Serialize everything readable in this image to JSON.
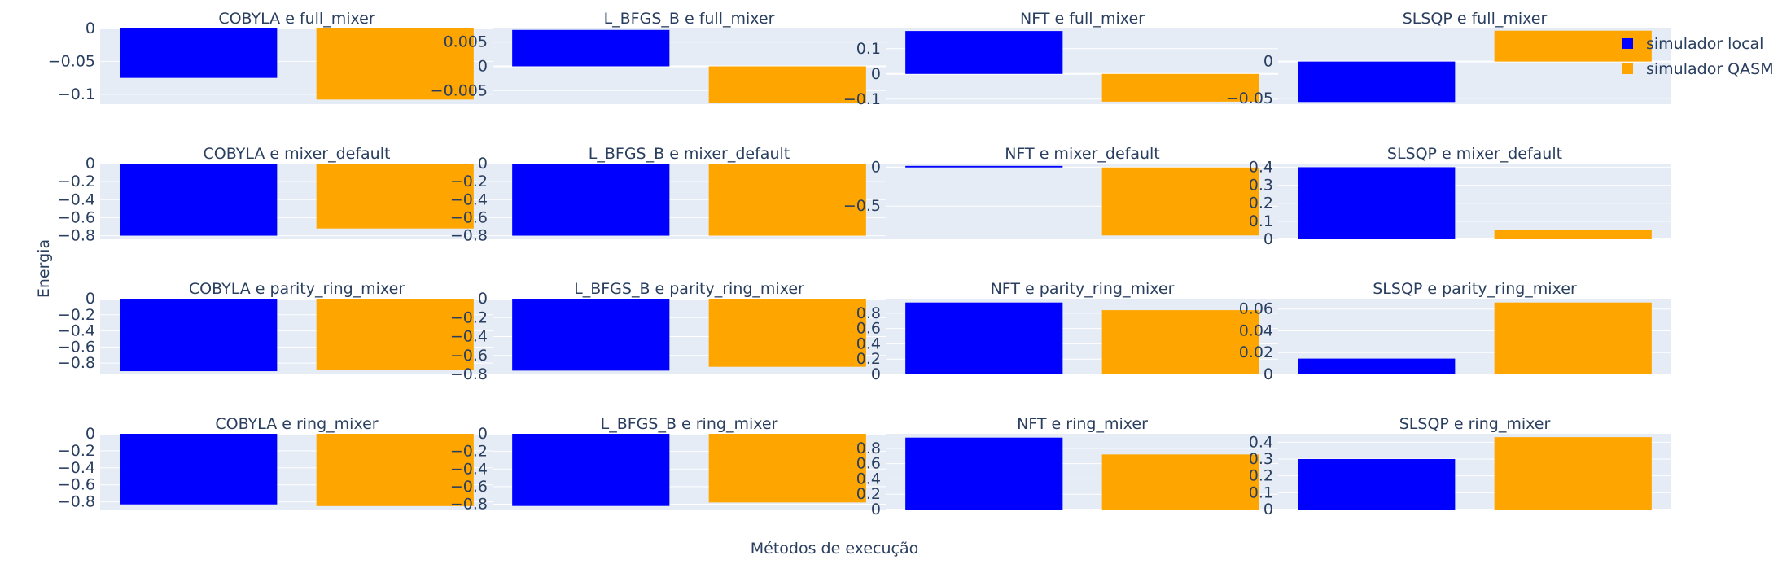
{
  "chart_data": {
    "type": "bar",
    "ylabel": "Energia",
    "xlabel": "Métodos de execução",
    "legend": {
      "placement": "top-right",
      "items": [
        {
          "name": "simulador local",
          "color": "#0000ff"
        },
        {
          "name": "simulador QASM",
          "color": "#ffa500"
        }
      ]
    },
    "grid": true,
    "subplots": [
      {
        "title": "COBYLA e full_mixer",
        "values": [
          -0.075,
          -0.108
        ],
        "ylim": [
          -0.115,
          0.0
        ],
        "ticks": [
          {
            "v": 0,
            "label": "0"
          },
          {
            "v": -0.05,
            "label": "−0.05"
          },
          {
            "v": -0.1,
            "label": "−0.1"
          }
        ]
      },
      {
        "title": "L_BFGS_B e full_mixer",
        "values": [
          0.0075,
          -0.0075
        ],
        "ylim": [
          -0.0078,
          0.0078
        ],
        "ticks": [
          {
            "v": 0.005,
            "label": "0.005"
          },
          {
            "v": 0,
            "label": "0"
          },
          {
            "v": -0.005,
            "label": "−0.005"
          }
        ]
      },
      {
        "title": "NFT e full_mixer",
        "values": [
          0.17,
          -0.11
        ],
        "ylim": [
          -0.12,
          0.18
        ],
        "ticks": [
          {
            "v": 0.1,
            "label": "0.1"
          },
          {
            "v": 0,
            "label": "0"
          },
          {
            "v": -0.1,
            "label": "−0.1"
          }
        ]
      },
      {
        "title": "SLSQP e full_mixer",
        "values": [
          -0.055,
          0.042
        ],
        "ylim": [
          -0.058,
          0.045
        ],
        "ticks": [
          {
            "v": 0,
            "label": "0"
          },
          {
            "v": -0.05,
            "label": "−0.05"
          }
        ]
      },
      {
        "title": "COBYLA e mixer_default",
        "values": [
          -0.8,
          -0.72
        ],
        "ylim": [
          -0.84,
          0.0
        ],
        "ticks": [
          {
            "v": 0,
            "label": "0"
          },
          {
            "v": -0.2,
            "label": "−0.2"
          },
          {
            "v": -0.4,
            "label": "−0.4"
          },
          {
            "v": -0.6,
            "label": "−0.6"
          },
          {
            "v": -0.8,
            "label": "−0.8"
          }
        ]
      },
      {
        "title": "L_BFGS_B e mixer_default",
        "values": [
          -0.8,
          -0.8
        ],
        "ylim": [
          -0.84,
          0.0
        ],
        "ticks": [
          {
            "v": 0,
            "label": "0"
          },
          {
            "v": -0.2,
            "label": "−0.2"
          },
          {
            "v": -0.4,
            "label": "−0.4"
          },
          {
            "v": -0.6,
            "label": "−0.6"
          },
          {
            "v": -0.8,
            "label": "−0.8"
          }
        ]
      },
      {
        "title": "NFT e mixer_default",
        "values": [
          0.02,
          -0.88
        ],
        "ylim": [
          -0.93,
          0.05
        ],
        "ticks": [
          {
            "v": 0,
            "label": "0"
          },
          {
            "v": -0.5,
            "label": "−0.5"
          }
        ]
      },
      {
        "title": "SLSQP e mixer_default",
        "values": [
          0.4,
          0.05
        ],
        "ylim": [
          0.0,
          0.42
        ],
        "ticks": [
          {
            "v": 0.4,
            "label": "0.4"
          },
          {
            "v": 0.3,
            "label": "0.3"
          },
          {
            "v": 0.2,
            "label": "0.2"
          },
          {
            "v": 0.1,
            "label": "0.1"
          },
          {
            "v": 0,
            "label": "0"
          }
        ]
      },
      {
        "title": "COBYLA e parity_ring_mixer",
        "values": [
          -0.9,
          -0.88
        ],
        "ylim": [
          -0.94,
          0.0
        ],
        "ticks": [
          {
            "v": 0,
            "label": "0"
          },
          {
            "v": -0.2,
            "label": "−0.2"
          },
          {
            "v": -0.4,
            "label": "−0.4"
          },
          {
            "v": -0.6,
            "label": "−0.6"
          },
          {
            "v": -0.8,
            "label": "−0.8"
          }
        ]
      },
      {
        "title": "L_BFGS_B e parity_ring_mixer",
        "values": [
          -0.76,
          -0.72
        ],
        "ylim": [
          -0.8,
          0.0
        ],
        "ticks": [
          {
            "v": 0,
            "label": "0"
          },
          {
            "v": -0.2,
            "label": "−0.2"
          },
          {
            "v": -0.4,
            "label": "−0.4"
          },
          {
            "v": -0.6,
            "label": "−0.6"
          },
          {
            "v": -0.8,
            "label": "−0.8"
          }
        ]
      },
      {
        "title": "NFT e parity_ring_mixer",
        "values": [
          0.94,
          0.84
        ],
        "ylim": [
          0.0,
          0.99
        ],
        "ticks": [
          {
            "v": 0.8,
            "label": "0.8"
          },
          {
            "v": 0.6,
            "label": "0.6"
          },
          {
            "v": 0.4,
            "label": "0.4"
          },
          {
            "v": 0.2,
            "label": "0.2"
          },
          {
            "v": 0,
            "label": "0"
          }
        ]
      },
      {
        "title": "SLSQP e parity_ring_mixer",
        "values": [
          0.0145,
          0.066
        ],
        "ylim": [
          0.0,
          0.0695
        ],
        "ticks": [
          {
            "v": 0.06,
            "label": "0.06"
          },
          {
            "v": 0.04,
            "label": "0.04"
          },
          {
            "v": 0.02,
            "label": "0.02"
          },
          {
            "v": 0,
            "label": "0"
          }
        ]
      },
      {
        "title": "COBYLA e ring_mixer",
        "values": [
          -0.83,
          -0.85
        ],
        "ylim": [
          -0.89,
          0.0
        ],
        "ticks": [
          {
            "v": 0,
            "label": "0"
          },
          {
            "v": -0.2,
            "label": "−0.2"
          },
          {
            "v": -0.4,
            "label": "−0.4"
          },
          {
            "v": -0.6,
            "label": "−0.6"
          },
          {
            "v": -0.8,
            "label": "−0.8"
          }
        ]
      },
      {
        "title": "L_BFGS_B e ring_mixer",
        "values": [
          -0.82,
          -0.78
        ],
        "ylim": [
          -0.86,
          0.0
        ],
        "ticks": [
          {
            "v": 0,
            "label": "0"
          },
          {
            "v": -0.2,
            "label": "−0.2"
          },
          {
            "v": -0.4,
            "label": "−0.4"
          },
          {
            "v": -0.6,
            "label": "−0.6"
          },
          {
            "v": -0.8,
            "label": "−0.8"
          }
        ]
      },
      {
        "title": "NFT e ring_mixer",
        "values": [
          0.94,
          0.72
        ],
        "ylim": [
          0.0,
          0.99
        ],
        "ticks": [
          {
            "v": 0.8,
            "label": "0.8"
          },
          {
            "v": 0.6,
            "label": "0.6"
          },
          {
            "v": 0.4,
            "label": "0.4"
          },
          {
            "v": 0.2,
            "label": "0.2"
          },
          {
            "v": 0,
            "label": "0"
          }
        ]
      },
      {
        "title": "SLSQP e ring_mixer",
        "values": [
          0.3,
          0.43
        ],
        "ylim": [
          0.0,
          0.45
        ],
        "ticks": [
          {
            "v": 0.4,
            "label": "0.4"
          },
          {
            "v": 0.3,
            "label": "0.3"
          },
          {
            "v": 0.2,
            "label": "0.2"
          },
          {
            "v": 0.1,
            "label": "0.1"
          },
          {
            "v": 0,
            "label": "0"
          }
        ]
      }
    ]
  }
}
